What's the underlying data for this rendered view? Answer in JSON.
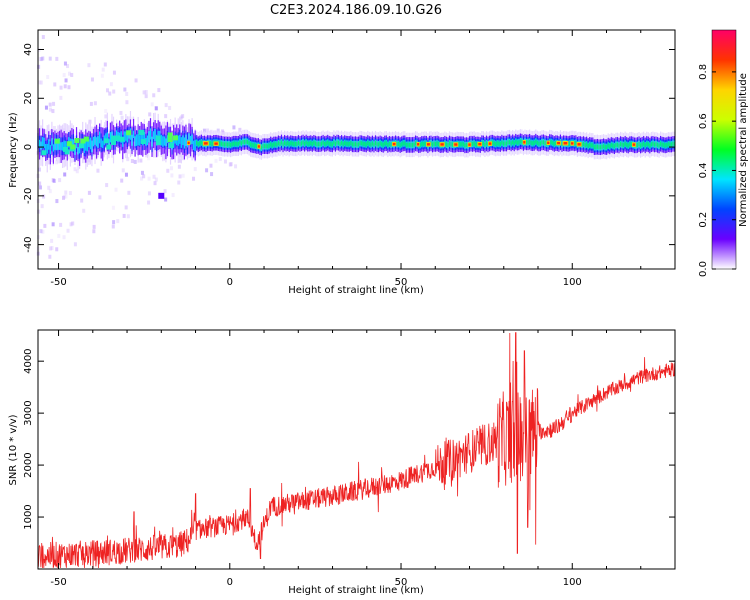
{
  "figure": {
    "title": "C2E3.2024.186.09.10.G26"
  },
  "chart_data": [
    {
      "type": "heatmap",
      "xlabel": "Height of straight line (km)",
      "ylabel": "Frequency (Hz)",
      "xlim": [
        -56,
        130
      ],
      "ylim": [
        -50,
        48
      ],
      "xticks": [
        -50,
        0,
        50,
        100
      ],
      "yticks": [
        -40,
        -20,
        0,
        20,
        40
      ],
      "colorbar": {
        "label": "Normalized spectral amplitude",
        "range": [
          0,
          0.97
        ],
        "ticks": [
          "0.0",
          "0.2",
          "0.4",
          "0.6",
          "0.8"
        ],
        "colors": [
          "#ffffff",
          "#6a00ff",
          "#0044ff",
          "#00e5ff",
          "#00ff22",
          "#ccff00",
          "#ffd400",
          "#ff3300",
          "#ff0066"
        ]
      },
      "band_centre_hz": [
        {
          "x": -55,
          "f": 0
        },
        {
          "x": -50,
          "f": 1
        },
        {
          "x": -45,
          "f": 0
        },
        {
          "x": -40,
          "f": 2
        },
        {
          "x": -35,
          "f": 3
        },
        {
          "x": -30,
          "f": 4
        },
        {
          "x": -25,
          "f": 4
        },
        {
          "x": -20,
          "f": 3
        },
        {
          "x": -15,
          "f": 2
        },
        {
          "x": -10,
          "f": 1.5
        },
        {
          "x": -5,
          "f": 1.5
        },
        {
          "x": 0,
          "f": 1
        },
        {
          "x": 5,
          "f": 2
        },
        {
          "x": 9,
          "f": 0
        },
        {
          "x": 15,
          "f": 1.5
        },
        {
          "x": 30,
          "f": 1.5
        },
        {
          "x": 50,
          "f": 1.2
        },
        {
          "x": 70,
          "f": 1
        },
        {
          "x": 85,
          "f": 2
        },
        {
          "x": 100,
          "f": 1.5
        },
        {
          "x": 108,
          "f": 0
        },
        {
          "x": 115,
          "f": 1
        },
        {
          "x": 130,
          "f": 1
        }
      ]
    },
    {
      "type": "line",
      "xlabel": "Height of straight line (km)",
      "ylabel": "SNR (10 * v/v)",
      "xlim": [
        -56,
        130
      ],
      "ylim": [
        0,
        4600
      ],
      "xticks": [
        -50,
        0,
        50,
        100
      ],
      "yticks": [
        1000,
        2000,
        3000,
        4000
      ],
      "color": "#ee2222",
      "series": [
        {
          "trend": [
            {
              "x": -56,
              "y": 250
            },
            {
              "x": -40,
              "y": 300
            },
            {
              "x": -25,
              "y": 380
            },
            {
              "x": -15,
              "y": 450
            },
            {
              "x": -12,
              "y": 550
            },
            {
              "x": -10,
              "y": 750
            },
            {
              "x": 0,
              "y": 850
            },
            {
              "x": 5,
              "y": 1000
            },
            {
              "x": 8,
              "y": 500
            },
            {
              "x": 12,
              "y": 1200
            },
            {
              "x": 30,
              "y": 1400
            },
            {
              "x": 50,
              "y": 1700
            },
            {
              "x": 65,
              "y": 2100
            },
            {
              "x": 75,
              "y": 2400
            },
            {
              "x": 85,
              "y": 2600
            },
            {
              "x": 95,
              "y": 2700
            },
            {
              "x": 100,
              "y": 3000
            },
            {
              "x": 110,
              "y": 3400
            },
            {
              "x": 120,
              "y": 3700
            },
            {
              "x": 130,
              "y": 3850
            }
          ],
          "spikes": [
            {
              "x": 83.5,
              "y": 4550
            },
            {
              "x": 84,
              "y": 300
            },
            {
              "x": 86,
              "y": 4200
            },
            {
              "x": 87,
              "y": 800
            },
            {
              "x": -10,
              "y": 1450
            },
            {
              "x": 6,
              "y": 1550
            },
            {
              "x": 9,
              "y": 200
            },
            {
              "x": -28,
              "y": 1100
            }
          ]
        }
      ]
    }
  ]
}
